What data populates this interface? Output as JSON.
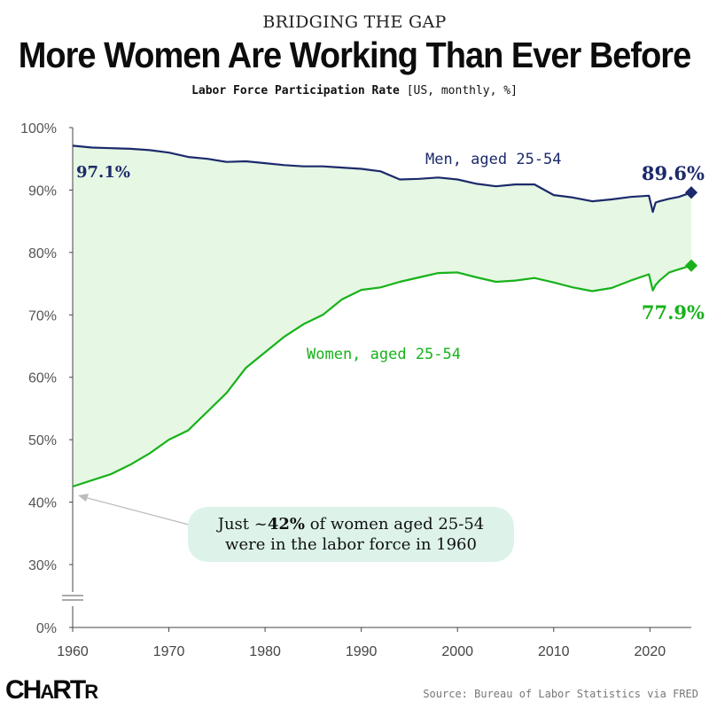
{
  "header": {
    "kicker": "BRIDGING THE GAP",
    "title": "More Women Are Working Than Ever Before",
    "subtitle_main": "Labor Force Participation Rate",
    "subtitle_note": "[US, monthly, %]"
  },
  "callout": {
    "line1_prefix": "Just ~",
    "line1_bold": "42%",
    "line1_suffix": " of women aged 25-54",
    "line2": "were in the labor force in 1960"
  },
  "footer": {
    "logo": "CHARTR",
    "source": "Source: Bureau of Labor Statistics via FRED"
  },
  "colors": {
    "men": "#1c2a6b",
    "women": "#17b21a",
    "fill": "#e6f7e3",
    "callout_bg": "#ddf3ea",
    "axis": "#444444"
  },
  "chart_data": {
    "type": "line",
    "title": "More Women Are Working Than Ever Before",
    "xlabel": "",
    "ylabel": "",
    "xlim": [
      1960,
      2024.3
    ],
    "ylim": [
      0,
      100
    ],
    "x_ticks": [
      1960,
      1970,
      1980,
      1990,
      2000,
      2010,
      2020
    ],
    "y_ticks": [
      "0%",
      "30%",
      "40%",
      "50%",
      "60%",
      "70%",
      "80%",
      "90%",
      "100%"
    ],
    "y_tick_values": [
      0,
      30,
      40,
      50,
      60,
      70,
      80,
      90,
      100
    ],
    "axis_break": true,
    "grid": false,
    "legend": "inline labels",
    "gap_fill": true,
    "series": [
      {
        "name": "Men, aged 25-54",
        "color": "#1c2a6b",
        "start_label": "97.1%",
        "end_label": "89.6%",
        "x": [
          1960,
          1962,
          1964,
          1966,
          1968,
          1970,
          1972,
          1974,
          1976,
          1978,
          1980,
          1982,
          1984,
          1986,
          1988,
          1990,
          1992,
          1994,
          1996,
          1998,
          2000,
          2002,
          2004,
          2006,
          2008,
          2010,
          2012,
          2014,
          2016,
          2018,
          2019.9,
          2020.3,
          2020.6,
          2021,
          2022,
          2023,
          2024.3
        ],
        "y": [
          97.1,
          96.8,
          96.7,
          96.6,
          96.4,
          96.0,
          95.3,
          95.0,
          94.5,
          94.6,
          94.3,
          94.0,
          93.8,
          93.8,
          93.6,
          93.4,
          93.0,
          91.7,
          91.8,
          92.0,
          91.7,
          91.0,
          90.6,
          90.9,
          90.9,
          89.2,
          88.8,
          88.2,
          88.5,
          88.9,
          89.1,
          86.5,
          88.0,
          88.2,
          88.6,
          88.9,
          89.6
        ]
      },
      {
        "name": "Women, aged 25-54",
        "color": "#17b21a",
        "end_label": "77.9%",
        "x": [
          1960,
          1962,
          1964,
          1966,
          1968,
          1970,
          1972,
          1974,
          1976,
          1978,
          1980,
          1982,
          1984,
          1986,
          1988,
          1990,
          1992,
          1994,
          1996,
          1998,
          2000,
          2002,
          2004,
          2006,
          2008,
          2010,
          2012,
          2014,
          2016,
          2018,
          2019.9,
          2020.3,
          2020.6,
          2021,
          2022,
          2023,
          2024.3
        ],
        "y": [
          42.5,
          43.5,
          44.5,
          46.0,
          47.8,
          50.0,
          51.5,
          54.5,
          57.5,
          61.5,
          64.0,
          66.5,
          68.5,
          70.0,
          72.5,
          74.0,
          74.4,
          75.3,
          76.0,
          76.7,
          76.8,
          76.0,
          75.3,
          75.5,
          75.9,
          75.2,
          74.4,
          73.8,
          74.3,
          75.5,
          76.5,
          73.9,
          74.8,
          75.5,
          76.8,
          77.3,
          77.9
        ]
      }
    ]
  }
}
